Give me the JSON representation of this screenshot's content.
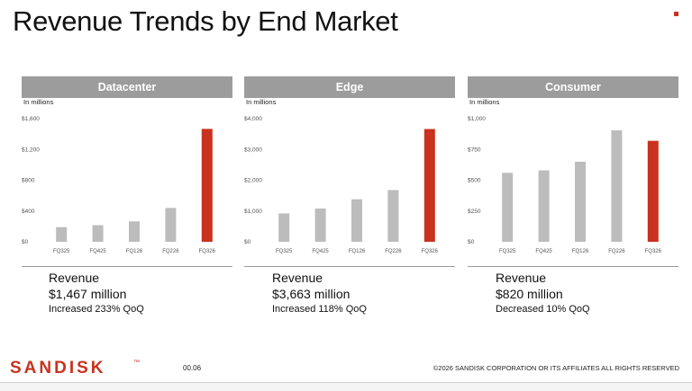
{
  "title": "Revenue Trends by End Market",
  "footer": {
    "logo_text": "SANDISK",
    "logo_mark": "™",
    "page_number": "00.06",
    "copyright": "©2026 SANDISK CORPORATION OR ITS AFFILIATES ALL RIGHTS RESERVED"
  },
  "colors": {
    "bar_default": "#bcbcbc",
    "bar_highlight": "#c8321e",
    "panel_header": "#9c9c9c",
    "logo": "#c8321e"
  },
  "chart_data": [
    {
      "type": "bar",
      "title": "Datacenter",
      "ylabel": "In millions",
      "categories": [
        "FQ325",
        "FQ425",
        "FQ126",
        "FQ226",
        "FQ326"
      ],
      "values": [
        190,
        215,
        265,
        440,
        1467
      ],
      "highlight_index": 4,
      "yticks": [
        0,
        400,
        800,
        1200,
        1600
      ],
      "ytick_labels": [
        "$0",
        "$400",
        "$800",
        "$1,200",
        "$1,600"
      ],
      "ylim": [
        0,
        1600
      ],
      "grid": false,
      "summary": {
        "label": "Revenue",
        "value": "$1,467 million",
        "change": "Increased 233% QoQ"
      }
    },
    {
      "type": "bar",
      "title": "Edge",
      "ylabel": "In millions",
      "categories": [
        "FQ325",
        "FQ425",
        "FQ126",
        "FQ226",
        "FQ326"
      ],
      "values": [
        920,
        1080,
        1380,
        1680,
        3663
      ],
      "highlight_index": 4,
      "yticks": [
        0,
        1000,
        2000,
        3000,
        4000
      ],
      "ytick_labels": [
        "$0",
        "$1,000",
        "$2,000",
        "$3,000",
        "$4,000"
      ],
      "ylim": [
        0,
        4000
      ],
      "grid": false,
      "summary": {
        "label": "Revenue",
        "value": "$3,663 million",
        "change": "Increased 118% QoQ"
      }
    },
    {
      "type": "bar",
      "title": "Consumer",
      "ylabel": "In millions",
      "categories": [
        "FQ325",
        "FQ425",
        "FQ126",
        "FQ226",
        "FQ326"
      ],
      "values": [
        560,
        580,
        650,
        905,
        820
      ],
      "highlight_index": 4,
      "yticks": [
        0,
        250,
        500,
        750,
        1000
      ],
      "ytick_labels": [
        "$0",
        "$250",
        "$500",
        "$750",
        "$1,000"
      ],
      "ylim": [
        0,
        1000
      ],
      "grid": false,
      "summary": {
        "label": "Revenue",
        "value": "$820 million",
        "change": "Decreased 10% QoQ"
      }
    }
  ]
}
